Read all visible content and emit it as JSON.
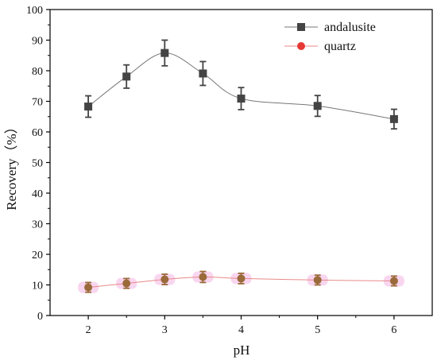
{
  "chart_data": {
    "type": "line",
    "xlabel": "pH",
    "ylabel": "Recovery（%）",
    "xlim": [
      1.5,
      6.5
    ],
    "ylim": [
      0,
      100
    ],
    "xticks": [
      2,
      3,
      4,
      5,
      6
    ],
    "yticks": [
      0,
      10,
      20,
      30,
      40,
      50,
      60,
      70,
      80,
      90,
      100
    ],
    "grid": false,
    "legend_position": "top-right",
    "series": [
      {
        "name": "andalusite",
        "marker": "square",
        "color": "#444444",
        "line_color": "#777777",
        "x": [
          2,
          2.5,
          3,
          3.5,
          4,
          5,
          6
        ],
        "y": [
          68.3,
          78.1,
          85.8,
          79.1,
          70.9,
          68.5,
          64.2
        ],
        "error": [
          3.5,
          3.8,
          4.2,
          3.9,
          3.6,
          3.4,
          3.2
        ]
      },
      {
        "name": "quartz",
        "marker": "circle",
        "color": "#9a6a3a",
        "legend_color": "#e53935",
        "line_color": "#e88a8a",
        "halo_color": "#f9d6ef",
        "x": [
          2,
          2.5,
          3,
          3.5,
          4,
          5,
          6
        ],
        "y": [
          9.2,
          10.5,
          11.8,
          12.6,
          12.1,
          11.6,
          11.3
        ],
        "error": [
          1.6,
          1.6,
          1.7,
          1.8,
          1.7,
          1.6,
          1.6
        ]
      }
    ]
  }
}
